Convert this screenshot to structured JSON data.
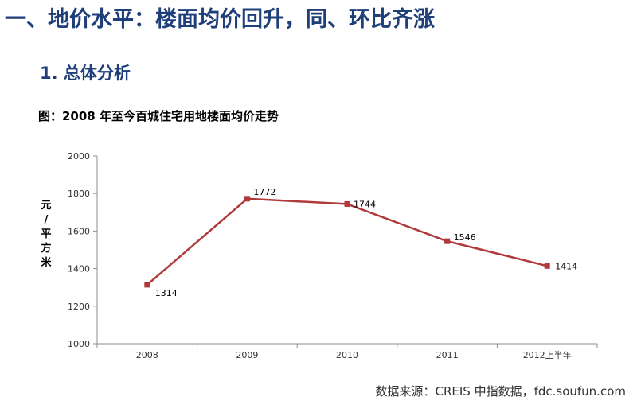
{
  "heading": "一、地价水平：楼面均价回升，同、环比齐涨",
  "subheading": "1. 总体分析",
  "caption": "图：2008 年至今百城住宅用地楼面均价走势",
  "source": "数据来源：CREIS 中指数据，fdc.soufun.com",
  "chart_data": {
    "type": "line",
    "categories": [
      "2008",
      "2009",
      "2010",
      "2011",
      "2012上半年"
    ],
    "series": [
      {
        "values": [
          1314,
          1772,
          1744,
          1546,
          1414
        ]
      }
    ],
    "data_labels": [
      "1314",
      "1772",
      "1744",
      "1546",
      "1414"
    ],
    "ylabel_chars": [
      "元",
      "/",
      "平",
      "方",
      "米"
    ],
    "yticks": [
      1000,
      1200,
      1400,
      1600,
      1800,
      2000
    ],
    "ylim": [
      1000,
      2000
    ],
    "grid": false,
    "legend": "none",
    "line_color": "#b03a3a"
  }
}
